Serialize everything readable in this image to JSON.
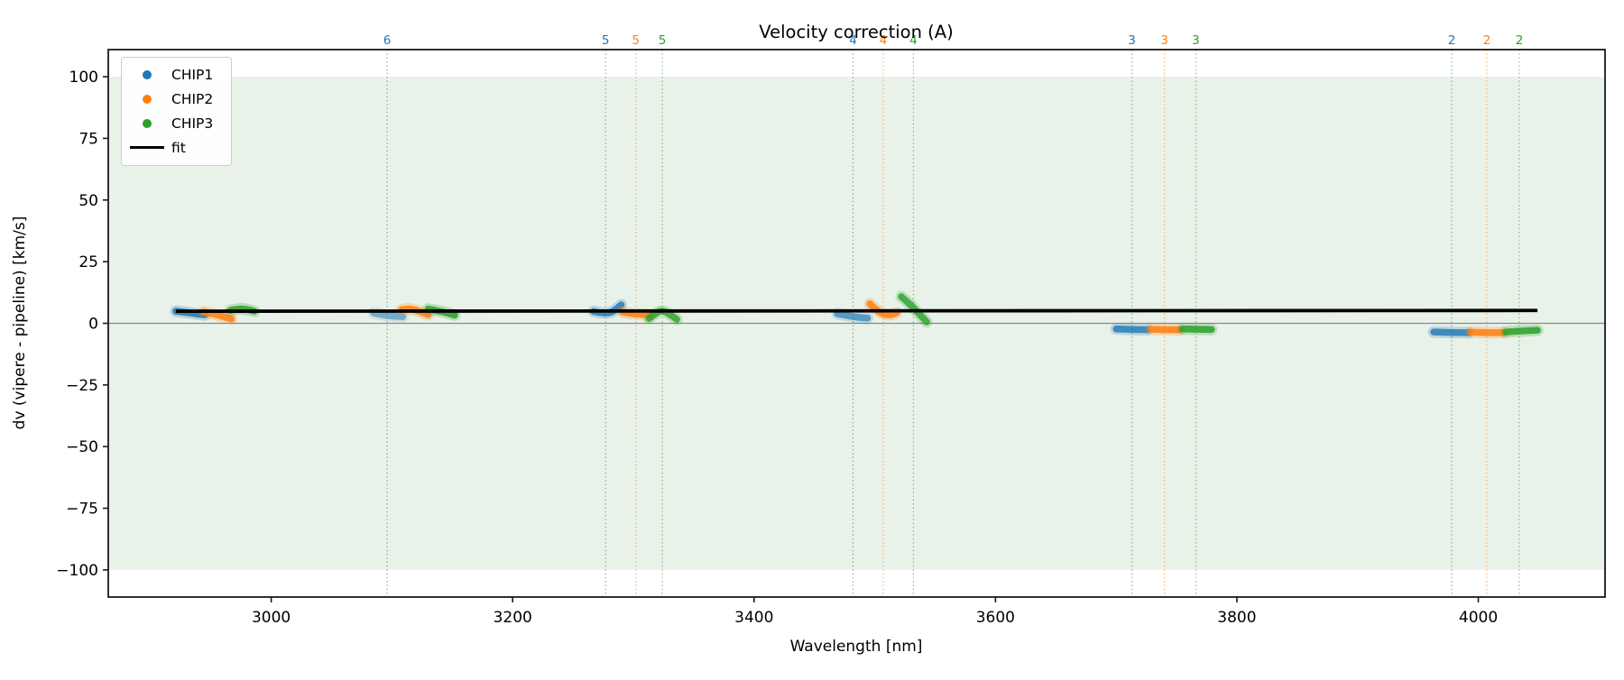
{
  "title": "Velocity correction (A)",
  "axes": {
    "xlabel": "Wavelength [nm]",
    "ylabel": "dv (vipere - pipeline) [km/s]"
  },
  "legend": {
    "items": [
      {
        "label": "CHIP1",
        "type": "dot",
        "color": "#1f77b4"
      },
      {
        "label": "CHIP2",
        "type": "dot",
        "color": "#ff7f0e"
      },
      {
        "label": "CHIP3",
        "type": "dot",
        "color": "#2ca02c"
      },
      {
        "label": "fit",
        "type": "line",
        "color": "#000000"
      }
    ]
  },
  "chart_data": {
    "type": "scatter",
    "title": "Velocity correction (A)",
    "xlabel": "Wavelength [nm]",
    "ylabel": "dv (vipere - pipeline) [km/s]",
    "xlim": [
      2865,
      4105
    ],
    "ylim": [
      -111,
      111
    ],
    "xticks": [
      3000,
      3200,
      3400,
      3600,
      3800,
      4000
    ],
    "yticks": [
      {
        "value": 100,
        "label": "100"
      },
      {
        "value": 75,
        "label": "75"
      },
      {
        "value": 50,
        "label": "50"
      },
      {
        "value": 25,
        "label": "25"
      },
      {
        "value": 0,
        "label": "0"
      },
      {
        "value": -25,
        "label": "−25"
      },
      {
        "value": -50,
        "label": "−50"
      },
      {
        "value": -75,
        "label": "−75"
      },
      {
        "value": -100,
        "label": "−100"
      }
    ],
    "grid": false,
    "legend_position": "upper left",
    "shaded_band": {
      "from": -100,
      "to": 100,
      "color": "#e9f2e9"
    },
    "zero_line": {
      "value": 0,
      "color": "#888888"
    },
    "series": [
      {
        "name": "CHIP1",
        "color": "#1f77b4",
        "segments": [
          {
            "opacity": 0.85,
            "points": [
              [
                2921,
                4.9
              ],
              [
                2929,
                4.5
              ],
              [
                2937,
                3.9
              ],
              [
                2945,
                3.4
              ]
            ]
          },
          {
            "opacity": 0.5,
            "points": [
              [
                3085,
                4.2
              ],
              [
                3092,
                3.5
              ],
              [
                3100,
                2.9
              ],
              [
                3109,
                2.7
              ]
            ]
          },
          {
            "opacity": 0.8,
            "points": [
              [
                3267,
                4.8
              ],
              [
                3273,
                4.2
              ],
              [
                3279,
                4.1
              ],
              [
                3284,
                5.0
              ],
              [
                3290,
                7.5
              ]
            ]
          },
          {
            "opacity": 0.65,
            "points": [
              [
                3469,
                3.9
              ],
              [
                3477,
                3.1
              ],
              [
                3486,
                2.4
              ],
              [
                3494,
                2.1
              ]
            ]
          },
          {
            "opacity": 0.8,
            "points": [
              [
                3700,
                -2.3
              ],
              [
                3712,
                -2.5
              ],
              [
                3726,
                -2.6
              ]
            ]
          },
          {
            "opacity": 0.8,
            "points": [
              [
                3963,
                -3.5
              ],
              [
                3977,
                -3.7
              ],
              [
                3992,
                -3.8
              ]
            ]
          }
        ]
      },
      {
        "name": "CHIP2",
        "color": "#ff7f0e",
        "segments": [
          {
            "opacity": 0.85,
            "points": [
              [
                2944,
                4.6
              ],
              [
                2952,
                3.9
              ],
              [
                2960,
                2.7
              ],
              [
                2967,
                1.8
              ]
            ]
          },
          {
            "opacity": 0.85,
            "points": [
              [
                3108,
                5.5
              ],
              [
                3114,
                6.1
              ],
              [
                3122,
                5.0
              ],
              [
                3130,
                3.5
              ]
            ]
          },
          {
            "opacity": 0.85,
            "points": [
              [
                3291,
                4.6
              ],
              [
                3299,
                3.9
              ],
              [
                3307,
                3.6
              ],
              [
                3314,
                3.4
              ]
            ]
          },
          {
            "opacity": 0.85,
            "points": [
              [
                3496,
                7.9
              ],
              [
                3501,
                5.4
              ],
              [
                3507,
                3.7
              ],
              [
                3513,
                3.3
              ],
              [
                3518,
                4.3
              ]
            ]
          },
          {
            "opacity": 0.85,
            "points": [
              [
                3729,
                -2.4
              ],
              [
                3741,
                -2.6
              ],
              [
                3753,
                -2.6
              ]
            ]
          },
          {
            "opacity": 0.85,
            "points": [
              [
                3994,
                -3.6
              ],
              [
                4008,
                -3.8
              ],
              [
                4021,
                -3.8
              ]
            ]
          }
        ]
      },
      {
        "name": "CHIP3",
        "color": "#2ca02c",
        "segments": [
          {
            "opacity": 0.85,
            "points": [
              [
                2966,
                5.2
              ],
              [
                2972,
                5.9
              ],
              [
                2979,
                5.8
              ],
              [
                2986,
                4.9
              ]
            ]
          },
          {
            "opacity": 0.85,
            "points": [
              [
                3130,
                5.8
              ],
              [
                3137,
                5.2
              ],
              [
                3145,
                4.3
              ],
              [
                3152,
                3.3
              ]
            ]
          },
          {
            "opacity": 0.8,
            "points": [
              [
                3313,
                1.9
              ],
              [
                3319,
                4.3
              ],
              [
                3324,
                5.3
              ],
              [
                3330,
                3.7
              ],
              [
                3336,
                1.6
              ]
            ]
          },
          {
            "opacity": 0.8,
            "points": [
              [
                3522,
                10.8
              ],
              [
                3529,
                7.9
              ],
              [
                3536,
                4.2
              ],
              [
                3543,
                0.6
              ]
            ]
          },
          {
            "opacity": 0.85,
            "points": [
              [
                3755,
                -2.3
              ],
              [
                3767,
                -2.4
              ],
              [
                3779,
                -2.5
              ]
            ]
          },
          {
            "opacity": 0.85,
            "points": [
              [
                4023,
                -3.5
              ],
              [
                4036,
                -3.1
              ],
              [
                4049,
                -2.8
              ]
            ]
          }
        ]
      }
    ],
    "fit": {
      "name": "fit",
      "color": "#000000",
      "points": [
        [
          2921,
          4.9
        ],
        [
          4049,
          5.2
        ]
      ]
    },
    "order_markers": [
      {
        "label": "6",
        "series": "CHIP1",
        "wavelength": 3096
      },
      {
        "label": "5",
        "series": "CHIP1",
        "wavelength": 3277
      },
      {
        "label": "5",
        "series": "CHIP2",
        "wavelength": 3302
      },
      {
        "label": "5",
        "series": "CHIP3",
        "wavelength": 3324
      },
      {
        "label": "4",
        "series": "CHIP1",
        "wavelength": 3482
      },
      {
        "label": "4",
        "series": "CHIP2",
        "wavelength": 3507
      },
      {
        "label": "4",
        "series": "CHIP3",
        "wavelength": 3532
      },
      {
        "label": "3",
        "series": "CHIP1",
        "wavelength": 3713
      },
      {
        "label": "3",
        "series": "CHIP2",
        "wavelength": 3740
      },
      {
        "label": "3",
        "series": "CHIP3",
        "wavelength": 3766
      },
      {
        "label": "2",
        "series": "CHIP1",
        "wavelength": 3978
      },
      {
        "label": "2",
        "series": "CHIP2",
        "wavelength": 4007
      },
      {
        "label": "2",
        "series": "CHIP3",
        "wavelength": 4034
      }
    ]
  }
}
